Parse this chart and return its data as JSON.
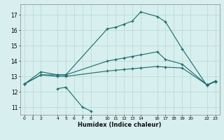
{
  "xlabel": "Humidex (Indice chaleur)",
  "bg_color": "#d7efee",
  "grid_color": "#b8d8d6",
  "line_color": "#1a6b6b",
  "xlim": [
    -0.5,
    23.5
  ],
  "ylim": [
    10.5,
    17.7
  ],
  "yticks": [
    11,
    12,
    13,
    14,
    15,
    16,
    17
  ],
  "xticks": [
    0,
    1,
    2,
    4,
    5,
    6,
    7,
    8,
    10,
    11,
    12,
    13,
    14,
    16,
    17,
    18,
    19,
    20,
    22,
    23
  ],
  "curve1_x": [
    0,
    2,
    4,
    5,
    10,
    11,
    12,
    13,
    14,
    16,
    17,
    19,
    22,
    23
  ],
  "curve1_y": [
    12.5,
    13.3,
    13.1,
    13.1,
    16.1,
    16.2,
    16.4,
    16.6,
    17.2,
    16.9,
    16.55,
    14.8,
    12.4,
    12.7
  ],
  "curve2_x": [
    0,
    2,
    4,
    5,
    10,
    11,
    12,
    13,
    14,
    16,
    17,
    19,
    22,
    23
  ],
  "curve2_y": [
    12.5,
    13.1,
    13.1,
    13.1,
    14.0,
    14.1,
    14.2,
    14.3,
    14.4,
    14.6,
    14.1,
    13.8,
    12.45,
    12.7
  ],
  "curve3_x": [
    0,
    2,
    4,
    5,
    10,
    11,
    12,
    13,
    14,
    16,
    17,
    19,
    22,
    23
  ],
  "curve3_y": [
    12.5,
    13.1,
    13.0,
    13.0,
    13.35,
    13.4,
    13.45,
    13.5,
    13.55,
    13.65,
    13.6,
    13.55,
    12.45,
    12.65
  ],
  "curve4_x": [
    4,
    5,
    7,
    8
  ],
  "curve4_y": [
    12.2,
    12.3,
    11.0,
    10.75
  ]
}
